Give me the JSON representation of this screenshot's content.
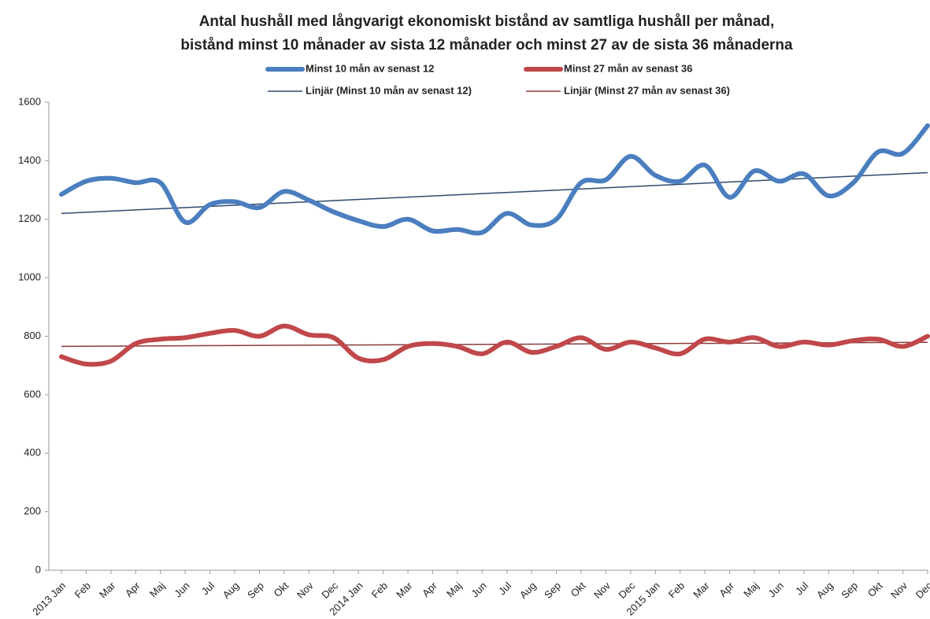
{
  "chart_data": {
    "type": "line",
    "title": [
      "Antal hushåll med långvarigt ekonomiskt bistånd av samtliga hushåll per månad,",
      "bistånd minst 10 månader av sista 12 månader och minst 27 av de sista 36 månaderna"
    ],
    "categories": [
      "2013 Jan",
      "Feb",
      "Mar",
      "Apr",
      "Maj",
      "Jun",
      "Jul",
      "Aug",
      "Sep",
      "Okt",
      "Nov",
      "Dec",
      "2014 Jan",
      "Feb",
      "Mar",
      "Apr",
      "Maj",
      "Jun",
      "Jul",
      "Aug",
      "Sep",
      "Okt",
      "Nov",
      "Dec",
      "2015 Jan",
      "Feb",
      "Mar",
      "Apr",
      "Maj",
      "Jun",
      "Jul",
      "Aug",
      "Sep",
      "Okt",
      "Nov",
      "Dec"
    ],
    "series": [
      {
        "name": "Minst 10 mån av senast 12",
        "color": "#4a7ebf",
        "values": [
          1285,
          1330,
          1340,
          1325,
          1325,
          1190,
          1250,
          1260,
          1240,
          1295,
          1265,
          1225,
          1195,
          1175,
          1200,
          1160,
          1165,
          1155,
          1220,
          1180,
          1200,
          1325,
          1335,
          1415,
          1350,
          1330,
          1385,
          1275,
          1365,
          1330,
          1355,
          1280,
          1325,
          1430,
          1425,
          1520
        ]
      },
      {
        "name": "Minst 27 mån av senast 36",
        "color": "#c0474a",
        "values": [
          730,
          705,
          715,
          775,
          790,
          795,
          810,
          820,
          800,
          835,
          805,
          795,
          725,
          720,
          765,
          775,
          765,
          740,
          780,
          745,
          765,
          795,
          755,
          780,
          760,
          740,
          790,
          780,
          795,
          765,
          780,
          770,
          785,
          790,
          765,
          800
        ]
      }
    ],
    "trendlines": [
      {
        "name": "Linjär (Minst 10 mån av senast 12)",
        "color": "#2e4a6e",
        "series": 0
      },
      {
        "name": "Linjär (Minst 27 mån av senast 36)",
        "color": "#8b3a3a",
        "series": 1
      }
    ],
    "ylim": [
      0,
      1600
    ],
    "yticks": [
      0,
      200,
      400,
      600,
      800,
      1000,
      1200,
      1400,
      1600
    ],
    "grid": false
  }
}
